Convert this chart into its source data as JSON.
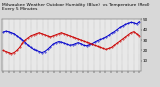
{
  "title": "Milwaukee Weather Outdoor Humidity (Blue)  vs Temperature (Red)  Every 5 Minutes",
  "bg_color": "#d8d8d8",
  "plot_bg_color": "#e8e8e8",
  "grid_color": "#888888",
  "blue_color": "#0000cc",
  "red_color": "#cc0000",
  "title_color": "#000000",
  "tick_color": "#000000",
  "humidity": [
    75,
    77,
    76,
    74,
    72,
    68,
    64,
    60,
    55,
    50,
    46,
    42,
    40,
    38,
    36,
    38,
    42,
    47,
    52,
    55,
    57,
    56,
    54,
    52,
    50,
    51,
    53,
    55,
    53,
    50,
    49,
    51,
    53,
    56,
    59,
    61,
    63,
    66,
    69,
    73,
    76,
    80,
    84,
    87,
    90,
    92,
    94,
    93,
    91,
    95
  ],
  "temperature": [
    20,
    19,
    18,
    17,
    18,
    20,
    23,
    27,
    30,
    32,
    34,
    35,
    36,
    37,
    36,
    35,
    34,
    33,
    34,
    35,
    36,
    37,
    36,
    35,
    34,
    33,
    32,
    31,
    30,
    29,
    28,
    27,
    26,
    25,
    24,
    23,
    22,
    21,
    22,
    23,
    25,
    27,
    29,
    31,
    33,
    35,
    37,
    38,
    36,
    34
  ],
  "ylim_left": [
    0,
    100
  ],
  "ylim_right": [
    0,
    50
  ],
  "n_points": 50,
  "title_fontsize": 3.2,
  "tick_fontsize": 3.0,
  "linewidth": 0.7,
  "markersize": 0.7
}
